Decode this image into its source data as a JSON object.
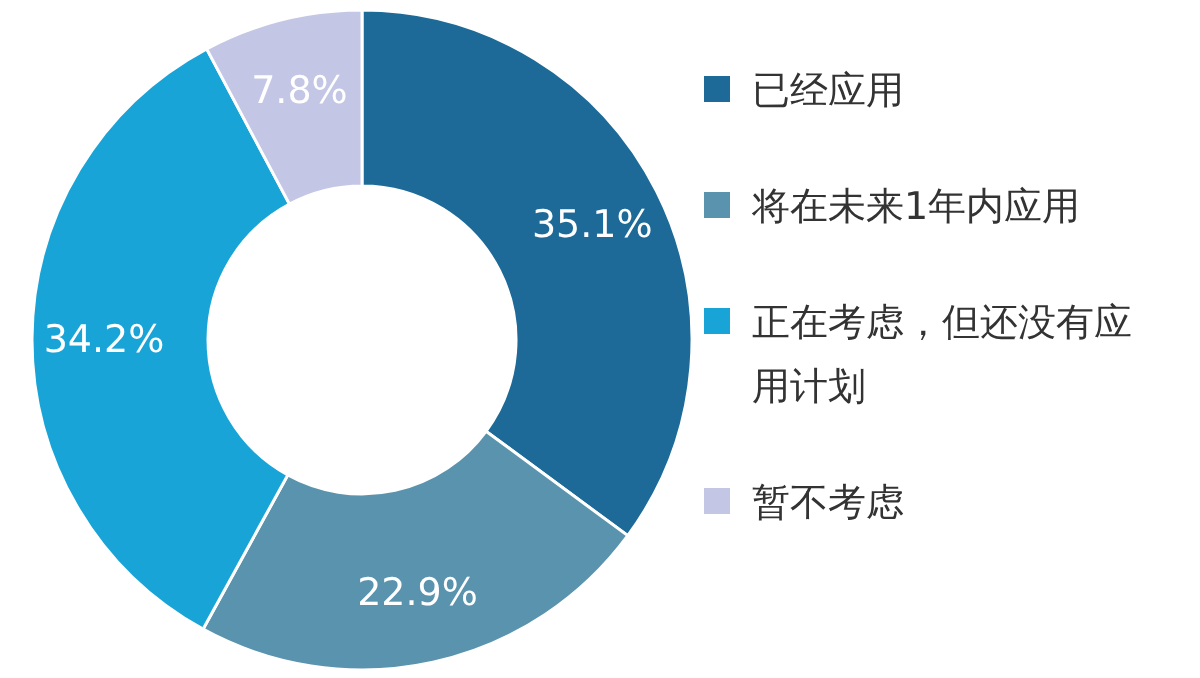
{
  "chart_data": {
    "type": "donut",
    "categories": [
      "已经应用",
      "将在未来1年内应用",
      "正在考虑，但还没有应用计划",
      "暂不考虑"
    ],
    "values": [
      35.1,
      22.9,
      34.2,
      7.8
    ],
    "colors": [
      "#1d6a98",
      "#5a93ad",
      "#19a4d8",
      "#c3c6e4"
    ],
    "value_labels": [
      "35.1%",
      "22.9%",
      "34.2%",
      "7.8%"
    ],
    "legend": "right"
  }
}
